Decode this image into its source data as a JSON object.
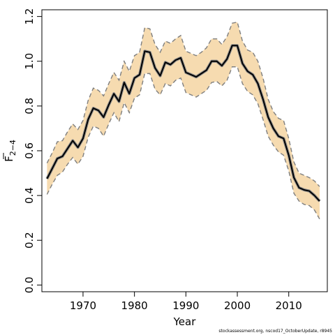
{
  "chart_data": {
    "type": "line",
    "xlabel": "Year",
    "ylabel_main": "F",
    "ylabel_sub": "2−4",
    "xlim": [
      1962,
      2017.5
    ],
    "ylim": [
      -0.03,
      1.23
    ],
    "xticks": [
      1970,
      1980,
      1990,
      2000,
      2010
    ],
    "xtick_labels": [
      "1970",
      "1980",
      "1990",
      "2000",
      "2010"
    ],
    "yticks": [
      0.0,
      0.2,
      0.4,
      0.6,
      0.8,
      1.0,
      1.2
    ],
    "ytick_labels": [
      "0.0",
      "0.2",
      "0.4",
      "0.6",
      "0.8",
      "1.0",
      "1.2"
    ],
    "grid": false,
    "x": [
      1963,
      1964,
      1965,
      1966,
      1967,
      1968,
      1969,
      1970,
      1971,
      1972,
      1973,
      1974,
      1975,
      1976,
      1977,
      1978,
      1979,
      1980,
      1981,
      1982,
      1983,
      1984,
      1985,
      1986,
      1987,
      1988,
      1989,
      1990,
      1991,
      1992,
      1993,
      1994,
      1995,
      1996,
      1997,
      1998,
      1999,
      2000,
      2001,
      2002,
      2003,
      2004,
      2005,
      2006,
      2007,
      2008,
      2009,
      2010,
      2011,
      2012,
      2013,
      2014,
      2015,
      2016
    ],
    "series": [
      {
        "values": [
          0.475,
          0.52,
          0.565,
          0.575,
          0.61,
          0.645,
          0.615,
          0.655,
          0.74,
          0.79,
          0.78,
          0.75,
          0.805,
          0.855,
          0.82,
          0.905,
          0.855,
          0.925,
          0.94,
          1.045,
          1.04,
          0.97,
          0.935,
          0.995,
          0.985,
          1.005,
          1.015,
          0.95,
          0.94,
          0.93,
          0.945,
          0.96,
          1.0,
          1.0,
          0.98,
          1.01,
          1.07,
          1.07,
          0.99,
          0.955,
          0.94,
          0.9,
          0.83,
          0.75,
          0.7,
          0.665,
          0.655,
          0.58,
          0.48,
          0.435,
          0.425,
          0.42,
          0.4,
          0.375
        ],
        "upper": [
          0.545,
          0.59,
          0.64,
          0.645,
          0.685,
          0.72,
          0.695,
          0.735,
          0.825,
          0.88,
          0.87,
          0.845,
          0.9,
          0.95,
          0.915,
          1.0,
          0.955,
          1.025,
          1.04,
          1.15,
          1.145,
          1.075,
          1.04,
          1.09,
          1.08,
          1.1,
          1.115,
          1.045,
          1.035,
          1.025,
          1.04,
          1.06,
          1.1,
          1.1,
          1.075,
          1.11,
          1.17,
          1.175,
          1.09,
          1.05,
          1.04,
          1.0,
          0.925,
          0.83,
          0.775,
          0.745,
          0.735,
          0.655,
          0.55,
          0.5,
          0.49,
          0.48,
          0.465,
          0.44
        ],
        "lower": [
          0.405,
          0.45,
          0.49,
          0.505,
          0.54,
          0.57,
          0.54,
          0.575,
          0.66,
          0.71,
          0.7,
          0.665,
          0.72,
          0.77,
          0.73,
          0.815,
          0.77,
          0.835,
          0.85,
          0.945,
          0.945,
          0.875,
          0.85,
          0.9,
          0.89,
          0.915,
          0.925,
          0.86,
          0.85,
          0.84,
          0.855,
          0.87,
          0.905,
          0.91,
          0.89,
          0.915,
          0.975,
          0.975,
          0.9,
          0.865,
          0.85,
          0.81,
          0.74,
          0.665,
          0.625,
          0.595,
          0.58,
          0.51,
          0.41,
          0.375,
          0.36,
          0.355,
          0.335,
          0.295
        ]
      }
    ],
    "colors": {
      "band": "#f6dbb0",
      "band_edge": "#7f7f7f",
      "line": "#000000",
      "line_halo": "#8c8c8c"
    }
  },
  "footer": "stockassessment.org, nscod17_OctoberUpdate, r8945"
}
